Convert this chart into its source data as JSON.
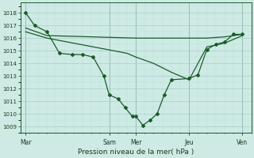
{
  "background_color": "#ceeae5",
  "grid_color_major": "#a8cec8",
  "grid_color_minor": "#bcdcd7",
  "line_color": "#1a5c28",
  "xlabel": "Pression niveau de la mer( hPa )",
  "ylim": [
    1008.5,
    1018.8
  ],
  "yticks": [
    1009,
    1010,
    1011,
    1012,
    1013,
    1014,
    1015,
    1016,
    1017,
    1018
  ],
  "xlim": [
    0,
    13
  ],
  "xtick_labels": [
    "Mar",
    "Sam",
    "Mer",
    "Jeu",
    "Ven"
  ],
  "xtick_positions": [
    0.3,
    5.0,
    6.5,
    9.5,
    12.5
  ],
  "series1_x": [
    0.3,
    0.8,
    1.5,
    2.2,
    2.9,
    3.5,
    4.1,
    4.7,
    5.0,
    5.5,
    5.9,
    6.3,
    6.5,
    6.9,
    7.3,
    7.7,
    8.1,
    8.5,
    9.5,
    10.0,
    10.5,
    11.0,
    11.5,
    12.0,
    12.5
  ],
  "series1_y": [
    1018.0,
    1017.0,
    1016.5,
    1014.8,
    1014.7,
    1014.7,
    1014.5,
    1013.0,
    1011.5,
    1011.2,
    1010.5,
    1009.8,
    1009.8,
    1009.1,
    1009.5,
    1010.0,
    1011.5,
    1012.7,
    1012.8,
    1013.1,
    1015.1,
    1015.5,
    1015.7,
    1016.3,
    1016.3
  ],
  "series2_x": [
    0.3,
    1.5,
    6.5,
    9.5,
    10.5,
    11.5,
    12.5
  ],
  "series2_y": [
    1016.8,
    1016.2,
    1016.0,
    1016.0,
    1016.0,
    1016.1,
    1016.3
  ],
  "series3_x": [
    0.3,
    1.5,
    3.0,
    4.5,
    6.0,
    6.5,
    7.5,
    8.5,
    9.5,
    10.5,
    11.5,
    12.5
  ],
  "series3_y": [
    1016.5,
    1016.0,
    1015.6,
    1015.2,
    1014.8,
    1014.5,
    1014.0,
    1013.3,
    1012.7,
    1015.3,
    1015.6,
    1016.2
  ]
}
